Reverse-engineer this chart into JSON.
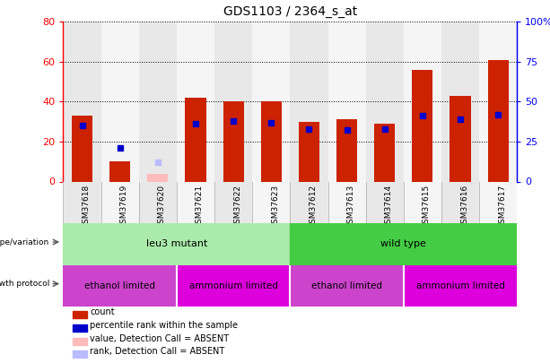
{
  "title": "GDS1103 / 2364_s_at",
  "samples": [
    "GSM37618",
    "GSM37619",
    "GSM37620",
    "GSM37621",
    "GSM37622",
    "GSM37623",
    "GSM37612",
    "GSM37613",
    "GSM37614",
    "GSM37615",
    "GSM37616",
    "GSM37617"
  ],
  "count_values": [
    33,
    10,
    null,
    42,
    40,
    40,
    30,
    31,
    29,
    56,
    43,
    61
  ],
  "percentile_values": [
    35,
    null,
    null,
    36,
    38,
    37,
    33,
    32,
    33,
    41,
    39,
    42
  ],
  "absent_count": [
    null,
    null,
    4,
    null,
    null,
    null,
    null,
    null,
    null,
    null,
    null,
    null
  ],
  "absent_rank": [
    null,
    null,
    12,
    null,
    null,
    null,
    null,
    null,
    null,
    null,
    null,
    null
  ],
  "absent_percentile": [
    null,
    21,
    null,
    null,
    null,
    null,
    null,
    null,
    null,
    null,
    null,
    null
  ],
  "ylim_left": [
    0,
    80
  ],
  "ylim_right": [
    0,
    100
  ],
  "yticks_left": [
    0,
    20,
    40,
    60,
    80
  ],
  "yticks_right": [
    0,
    25,
    50,
    75,
    100
  ],
  "ytick_labels_left": [
    "0",
    "20",
    "40",
    "60",
    "80"
  ],
  "ytick_labels_right": [
    "0",
    "25",
    "50",
    "75",
    "100%"
  ],
  "bar_color": "#cc2200",
  "percentile_color": "#0000cc",
  "absent_bar_color": "#ffbbbb",
  "absent_rank_color": "#bbbbff",
  "absent_percentile_color": "#0000cc",
  "col_bg_even": "#e8e8e8",
  "col_bg_odd": "#f5f5f5",
  "annotation_rows": [
    {
      "label": "genotype/variation",
      "groups": [
        {
          "text": "leu3 mutant",
          "start": 0,
          "end": 5,
          "color": "#aaeaaa"
        },
        {
          "text": "wild type",
          "start": 6,
          "end": 11,
          "color": "#44cc44"
        }
      ]
    },
    {
      "label": "growth protocol",
      "groups": [
        {
          "text": "ethanol limited",
          "start": 0,
          "end": 2,
          "color": "#cc44cc"
        },
        {
          "text": "ammonium limited",
          "start": 3,
          "end": 5,
          "color": "#dd00dd"
        },
        {
          "text": "ethanol limited",
          "start": 6,
          "end": 8,
          "color": "#cc44cc"
        },
        {
          "text": "ammonium limited",
          "start": 9,
          "end": 11,
          "color": "#dd00dd"
        }
      ]
    }
  ],
  "legend_items": [
    {
      "label": "count",
      "color": "#cc2200"
    },
    {
      "label": "percentile rank within the sample",
      "color": "#0000cc"
    },
    {
      "label": "value, Detection Call = ABSENT",
      "color": "#ffbbbb"
    },
    {
      "label": "rank, Detection Call = ABSENT",
      "color": "#bbbbff"
    }
  ]
}
